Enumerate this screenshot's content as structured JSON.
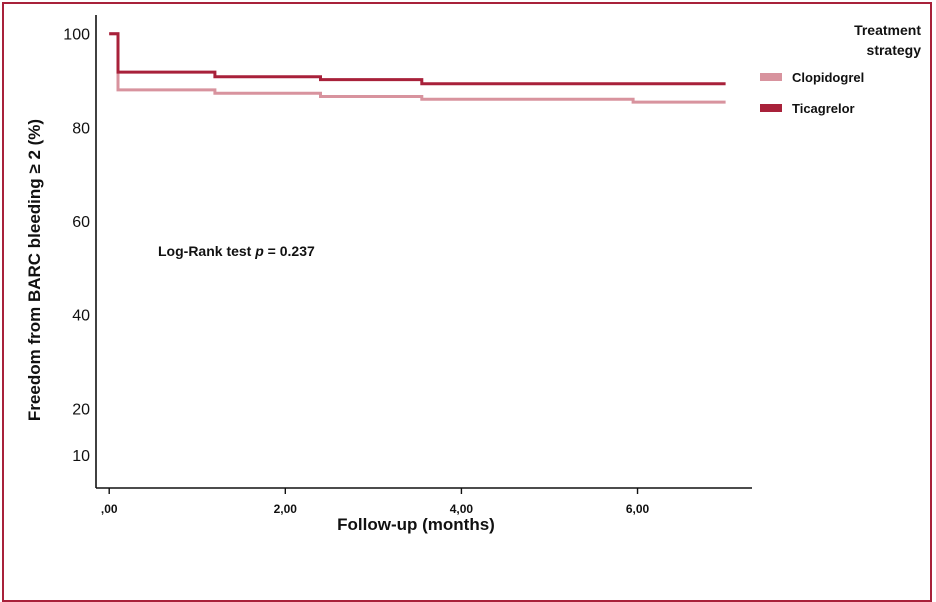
{
  "chart_data": {
    "type": "line",
    "step": true,
    "xlabel": "Follow-up (months)",
    "ylabel": "Freedom from BARC bleeding ≥ 2 (%)",
    "x_ticks": [
      0,
      2,
      4,
      6
    ],
    "x_tick_labels": [
      ",00",
      "2,00",
      "4,00",
      "6,00"
    ],
    "y_ticks": [
      10,
      20,
      40,
      60,
      80,
      100
    ],
    "y_tick_labels": [
      "10",
      "20",
      "40",
      "60",
      "80",
      "100"
    ],
    "xlim": [
      -0.15,
      7.3
    ],
    "ylim": [
      3,
      104
    ],
    "legend": {
      "title_line1": "Treatment",
      "title_line2": "strategy",
      "placement": "top-right"
    },
    "annotation": {
      "prefix": "Log-Rank test ",
      "italic": "p",
      "suffix": " = 0.237"
    },
    "series": [
      {
        "name": "Clopidogrel",
        "color": "#d8939e",
        "x": [
          0,
          0.1,
          0.1,
          1.2,
          1.2,
          2.4,
          2.4,
          3.55,
          3.55,
          5.95,
          5.95,
          7.0
        ],
        "y": [
          100,
          100,
          88,
          88,
          87.3,
          87.3,
          86.6,
          86.6,
          86,
          86,
          85.4,
          85.4
        ]
      },
      {
        "name": "Ticagrelor",
        "color": "#a8213a",
        "x": [
          0,
          0.1,
          0.1,
          1.2,
          1.2,
          2.4,
          2.4,
          3.55,
          3.55,
          7.0
        ],
        "y": [
          100,
          100,
          91.8,
          91.8,
          90.8,
          90.8,
          90.2,
          90.2,
          89.3,
          89.3
        ]
      }
    ]
  }
}
